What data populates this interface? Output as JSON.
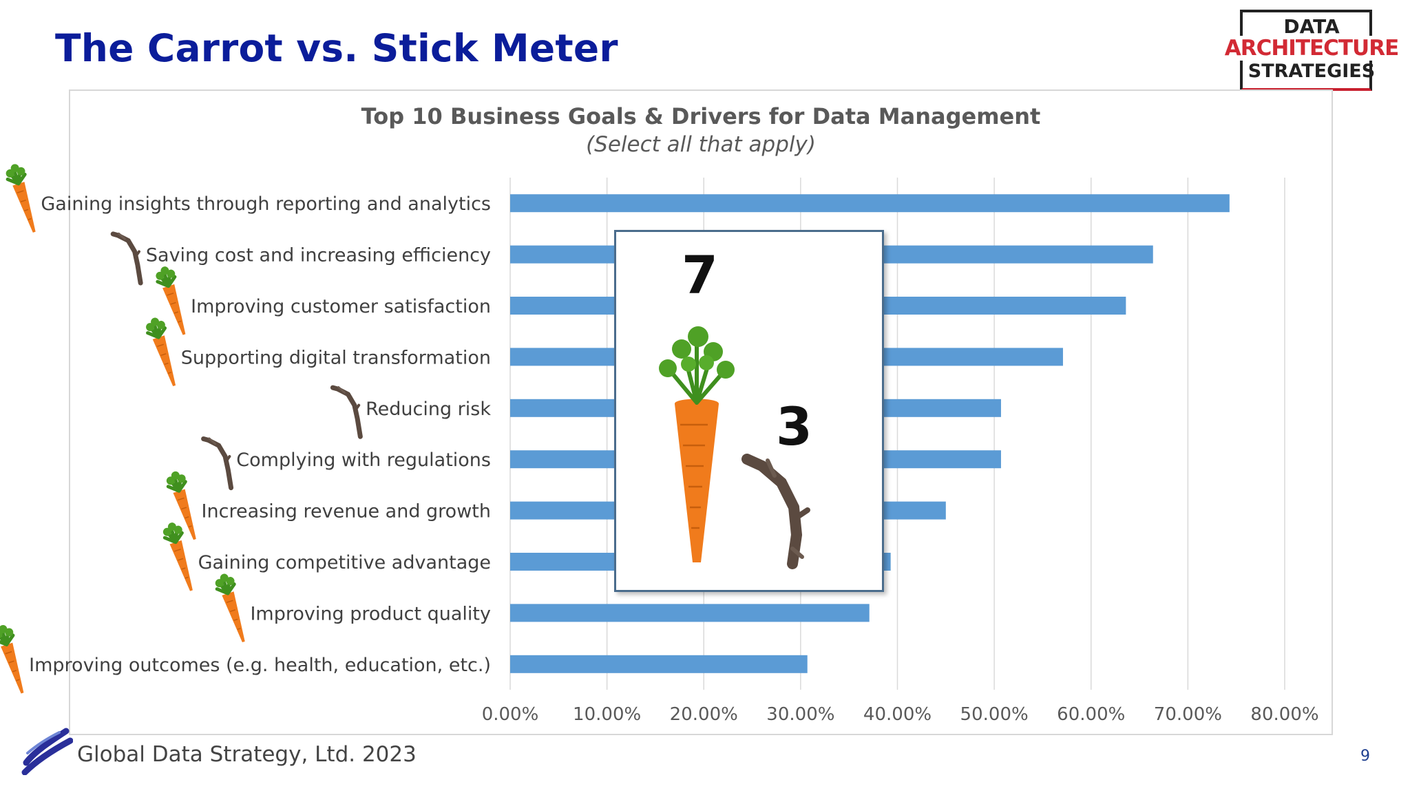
{
  "slide": {
    "title": "The Carrot vs. Stick Meter",
    "page_number": "9"
  },
  "logo": {
    "line1": "DATA",
    "line2": "ARCHITECTURE",
    "line3": "STRATEGIES"
  },
  "footer": {
    "text": "Global Data Strategy, Ltd. 2023"
  },
  "popup": {
    "carrot_count": "7",
    "stick_count": "3"
  },
  "icons": [
    "carrot-icon",
    "stick-icon",
    "wave-logo-icon"
  ],
  "colors": {
    "title": "#0b1d9a",
    "bar": "#5b9bd5",
    "carrot": "#f07b1c",
    "carrot_leaf": "#3f8f1e",
    "stick": "#5b4a40"
  },
  "chart_data": {
    "type": "bar",
    "orientation": "horizontal",
    "title": "Top 10 Business Goals & Drivers for Data Management",
    "subtitle": "(Select all that apply)",
    "categories": [
      "Gaining insights through reporting and analytics",
      "Saving cost and increasing efficiency",
      "Improving customer satisfaction",
      "Supporting digital transformation",
      "Reducing risk",
      "Complying with regulations",
      "Increasing revenue and growth",
      "Gaining competitive advantage",
      "Improving product quality",
      "Improving outcomes (e.g. health, education, etc.)"
    ],
    "values": [
      74.3,
      66.4,
      63.6,
      57.1,
      50.7,
      50.7,
      45.0,
      39.3,
      37.1,
      30.7
    ],
    "markers": [
      "carrot",
      "stick",
      "carrot",
      "carrot",
      "stick",
      "stick",
      "carrot",
      "carrot",
      "carrot",
      "carrot"
    ],
    "xlim": [
      0,
      80
    ],
    "xticks": [
      "0.00%",
      "10.00%",
      "20.00%",
      "30.00%",
      "40.00%",
      "50.00%",
      "60.00%",
      "70.00%",
      "80.00%"
    ],
    "grid": true
  }
}
